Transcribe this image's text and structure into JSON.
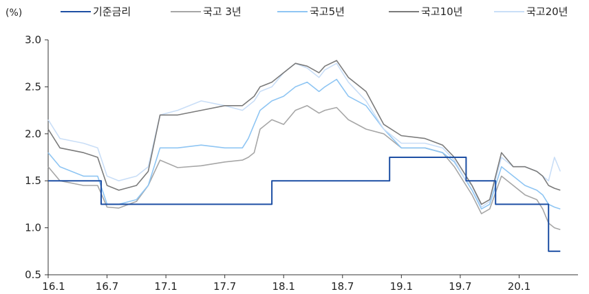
{
  "chart_data": {
    "type": "line",
    "unit_label": "(%)",
    "ylim": [
      0.5,
      3.0
    ],
    "yticks": [
      "0.5",
      "1.0",
      "1.5",
      "2.0",
      "2.5",
      "3.0"
    ],
    "xticks": [
      "16.1",
      "16.7",
      "17.1",
      "17.7",
      "18.1",
      "18.7",
      "19.1",
      "19.7",
      "20.1"
    ],
    "x_range": [
      2016.0,
      2020.5
    ],
    "grid": false,
    "legend_position": "top",
    "series": [
      {
        "name": "기준금리",
        "color": "#1c4ea3",
        "step": true,
        "points": [
          [
            2016.0,
            1.5
          ],
          [
            2016.45,
            1.25
          ],
          [
            2017.9,
            1.5
          ],
          [
            2018.9,
            1.75
          ],
          [
            2019.55,
            1.5
          ],
          [
            2019.8,
            1.25
          ],
          [
            2020.25,
            0.75
          ],
          [
            2020.35,
            0.75
          ]
        ]
      },
      {
        "name": "국고 3년",
        "color": "#a6a6a6",
        "points": [
          [
            2016.0,
            1.65
          ],
          [
            2016.1,
            1.5
          ],
          [
            2016.3,
            1.45
          ],
          [
            2016.42,
            1.45
          ],
          [
            2016.5,
            1.22
          ],
          [
            2016.6,
            1.21
          ],
          [
            2016.75,
            1.28
          ],
          [
            2016.85,
            1.45
          ],
          [
            2016.95,
            1.72
          ],
          [
            2017.1,
            1.64
          ],
          [
            2017.3,
            1.66
          ],
          [
            2017.5,
            1.7
          ],
          [
            2017.65,
            1.72
          ],
          [
            2017.7,
            1.75
          ],
          [
            2017.75,
            1.8
          ],
          [
            2017.8,
            2.05
          ],
          [
            2017.9,
            2.15
          ],
          [
            2018.0,
            2.1
          ],
          [
            2018.1,
            2.25
          ],
          [
            2018.2,
            2.3
          ],
          [
            2018.3,
            2.22
          ],
          [
            2018.35,
            2.25
          ],
          [
            2018.45,
            2.28
          ],
          [
            2018.55,
            2.15
          ],
          [
            2018.7,
            2.05
          ],
          [
            2018.85,
            2.0
          ],
          [
            2019.0,
            1.85
          ],
          [
            2019.2,
            1.85
          ],
          [
            2019.35,
            1.8
          ],
          [
            2019.45,
            1.65
          ],
          [
            2019.55,
            1.45
          ],
          [
            2019.6,
            1.35
          ],
          [
            2019.68,
            1.15
          ],
          [
            2019.75,
            1.2
          ],
          [
            2019.85,
            1.55
          ],
          [
            2019.95,
            1.45
          ],
          [
            2020.05,
            1.35
          ],
          [
            2020.15,
            1.3
          ],
          [
            2020.2,
            1.2
          ],
          [
            2020.25,
            1.05
          ],
          [
            2020.3,
            1.0
          ],
          [
            2020.35,
            0.98
          ]
        ]
      },
      {
        "name": "국고5년",
        "color": "#8ec5f3",
        "points": [
          [
            2016.0,
            1.8
          ],
          [
            2016.1,
            1.65
          ],
          [
            2016.3,
            1.55
          ],
          [
            2016.42,
            1.55
          ],
          [
            2016.5,
            1.25
          ],
          [
            2016.6,
            1.25
          ],
          [
            2016.75,
            1.3
          ],
          [
            2016.85,
            1.45
          ],
          [
            2016.95,
            1.85
          ],
          [
            2017.1,
            1.85
          ],
          [
            2017.3,
            1.88
          ],
          [
            2017.5,
            1.85
          ],
          [
            2017.65,
            1.85
          ],
          [
            2017.7,
            1.95
          ],
          [
            2017.75,
            2.1
          ],
          [
            2017.8,
            2.25
          ],
          [
            2017.9,
            2.35
          ],
          [
            2018.0,
            2.4
          ],
          [
            2018.1,
            2.5
          ],
          [
            2018.2,
            2.55
          ],
          [
            2018.3,
            2.45
          ],
          [
            2018.35,
            2.5
          ],
          [
            2018.45,
            2.58
          ],
          [
            2018.55,
            2.4
          ],
          [
            2018.7,
            2.3
          ],
          [
            2018.85,
            2.05
          ],
          [
            2019.0,
            1.85
          ],
          [
            2019.2,
            1.85
          ],
          [
            2019.35,
            1.8
          ],
          [
            2019.45,
            1.7
          ],
          [
            2019.55,
            1.5
          ],
          [
            2019.6,
            1.4
          ],
          [
            2019.68,
            1.2
          ],
          [
            2019.75,
            1.25
          ],
          [
            2019.85,
            1.65
          ],
          [
            2019.95,
            1.55
          ],
          [
            2020.05,
            1.45
          ],
          [
            2020.15,
            1.4
          ],
          [
            2020.2,
            1.35
          ],
          [
            2020.25,
            1.25
          ],
          [
            2020.3,
            1.22
          ],
          [
            2020.35,
            1.2
          ]
        ]
      },
      {
        "name": "국고10년",
        "color": "#7a7a7a",
        "points": [
          [
            2016.0,
            2.05
          ],
          [
            2016.1,
            1.85
          ],
          [
            2016.3,
            1.8
          ],
          [
            2016.42,
            1.75
          ],
          [
            2016.5,
            1.45
          ],
          [
            2016.6,
            1.4
          ],
          [
            2016.75,
            1.45
          ],
          [
            2016.85,
            1.6
          ],
          [
            2016.95,
            2.2
          ],
          [
            2017.1,
            2.2
          ],
          [
            2017.3,
            2.25
          ],
          [
            2017.5,
            2.3
          ],
          [
            2017.65,
            2.3
          ],
          [
            2017.7,
            2.35
          ],
          [
            2017.75,
            2.4
          ],
          [
            2017.8,
            2.5
          ],
          [
            2017.9,
            2.55
          ],
          [
            2018.0,
            2.65
          ],
          [
            2018.1,
            2.75
          ],
          [
            2018.2,
            2.72
          ],
          [
            2018.3,
            2.65
          ],
          [
            2018.35,
            2.72
          ],
          [
            2018.45,
            2.78
          ],
          [
            2018.55,
            2.6
          ],
          [
            2018.7,
            2.45
          ],
          [
            2018.85,
            2.1
          ],
          [
            2019.0,
            1.98
          ],
          [
            2019.2,
            1.95
          ],
          [
            2019.35,
            1.88
          ],
          [
            2019.45,
            1.75
          ],
          [
            2019.55,
            1.55
          ],
          [
            2019.6,
            1.45
          ],
          [
            2019.68,
            1.25
          ],
          [
            2019.75,
            1.3
          ],
          [
            2019.85,
            1.8
          ],
          [
            2019.95,
            1.65
          ],
          [
            2020.05,
            1.65
          ],
          [
            2020.15,
            1.6
          ],
          [
            2020.2,
            1.55
          ],
          [
            2020.25,
            1.45
          ],
          [
            2020.3,
            1.42
          ],
          [
            2020.35,
            1.4
          ]
        ]
      },
      {
        "name": "국고20년",
        "color": "#c9def7",
        "points": [
          [
            2016.0,
            2.15
          ],
          [
            2016.1,
            1.95
          ],
          [
            2016.3,
            1.9
          ],
          [
            2016.42,
            1.85
          ],
          [
            2016.5,
            1.55
          ],
          [
            2016.6,
            1.5
          ],
          [
            2016.75,
            1.55
          ],
          [
            2016.85,
            1.65
          ],
          [
            2016.95,
            2.2
          ],
          [
            2017.1,
            2.25
          ],
          [
            2017.3,
            2.35
          ],
          [
            2017.5,
            2.3
          ],
          [
            2017.65,
            2.25
          ],
          [
            2017.7,
            2.3
          ],
          [
            2017.75,
            2.35
          ],
          [
            2017.8,
            2.45
          ],
          [
            2017.9,
            2.5
          ],
          [
            2018.0,
            2.65
          ],
          [
            2018.1,
            2.75
          ],
          [
            2018.2,
            2.7
          ],
          [
            2018.3,
            2.6
          ],
          [
            2018.35,
            2.68
          ],
          [
            2018.45,
            2.75
          ],
          [
            2018.55,
            2.55
          ],
          [
            2018.7,
            2.35
          ],
          [
            2018.85,
            2.05
          ],
          [
            2019.0,
            1.9
          ],
          [
            2019.2,
            1.9
          ],
          [
            2019.35,
            1.85
          ],
          [
            2019.45,
            1.72
          ],
          [
            2019.55,
            1.5
          ],
          [
            2019.6,
            1.45
          ],
          [
            2019.68,
            1.22
          ],
          [
            2019.75,
            1.28
          ],
          [
            2019.85,
            1.75
          ],
          [
            2019.95,
            1.65
          ],
          [
            2020.05,
            1.65
          ],
          [
            2020.15,
            1.6
          ],
          [
            2020.2,
            1.55
          ],
          [
            2020.25,
            1.5
          ],
          [
            2020.3,
            1.75
          ],
          [
            2020.35,
            1.6
          ]
        ]
      }
    ]
  }
}
